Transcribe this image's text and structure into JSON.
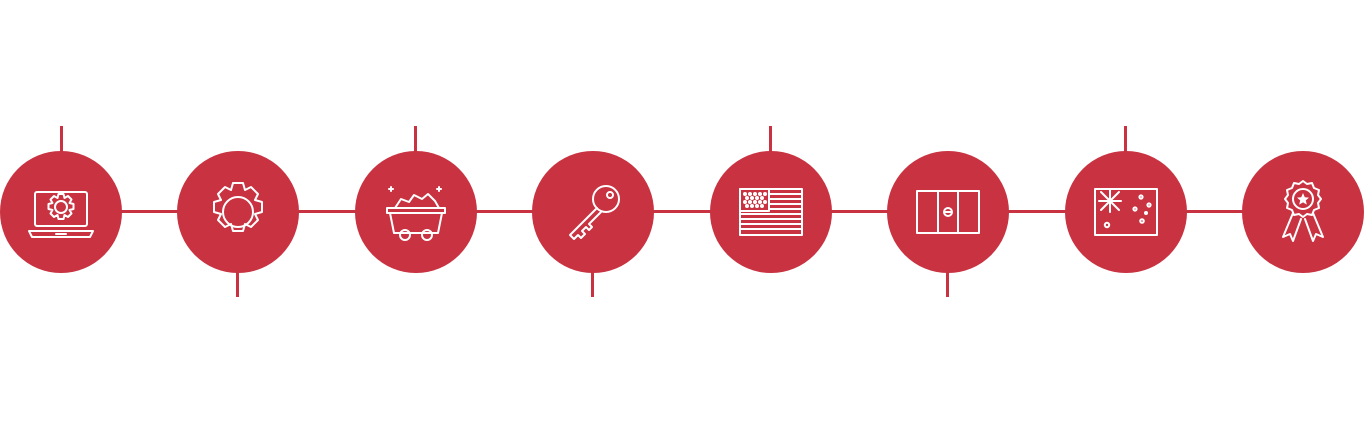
{
  "colors": {
    "accent": "#c83241",
    "icon": "#ffffff",
    "background": "#ffffff"
  },
  "timeline": {
    "nodes": [
      {
        "icon": "laptop-gear-icon",
        "stem": "up"
      },
      {
        "icon": "gear-icon",
        "stem": "down"
      },
      {
        "icon": "mine-cart-icon",
        "stem": "up"
      },
      {
        "icon": "key-icon",
        "stem": "down"
      },
      {
        "icon": "us-flag-icon",
        "stem": "up"
      },
      {
        "icon": "peru-flag-icon",
        "stem": "down"
      },
      {
        "icon": "australia-flag-icon",
        "stem": "up"
      },
      {
        "icon": "award-ribbon-icon",
        "stem": "none"
      }
    ]
  }
}
